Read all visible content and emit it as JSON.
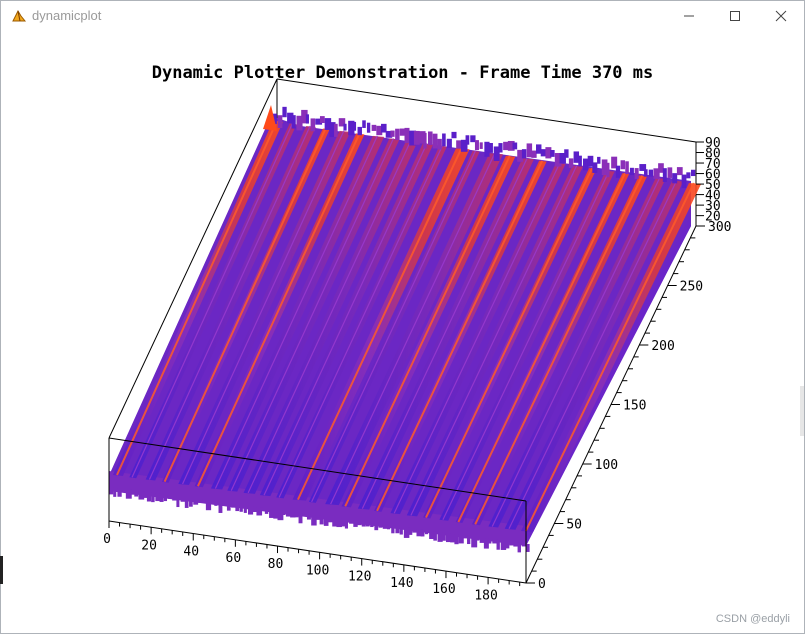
{
  "window": {
    "title": "dynamicplot",
    "app_icon": "matlab-style-icon",
    "controls": {
      "minimize": "minimize-icon",
      "maximize": "maximize-icon",
      "close": "close-icon"
    }
  },
  "plot": {
    "title": "Dynamic Plotter Demonstration - Frame Time 370 ms",
    "x_ticks": [
      "0",
      "20",
      "40",
      "60",
      "80",
      "100",
      "120",
      "140",
      "160",
      "180"
    ],
    "y_ticks": [
      "0",
      "50",
      "100",
      "150",
      "200",
      "250",
      "300"
    ],
    "z_ticks": [
      "20",
      "30",
      "40",
      "50",
      "60",
      "70",
      "80",
      "90"
    ],
    "surface_colors": {
      "low": "#5a1fc9",
      "mid": "#8a2fb8",
      "high": "#ff4a1a"
    }
  },
  "watermark": "CSDN @eddyli"
}
